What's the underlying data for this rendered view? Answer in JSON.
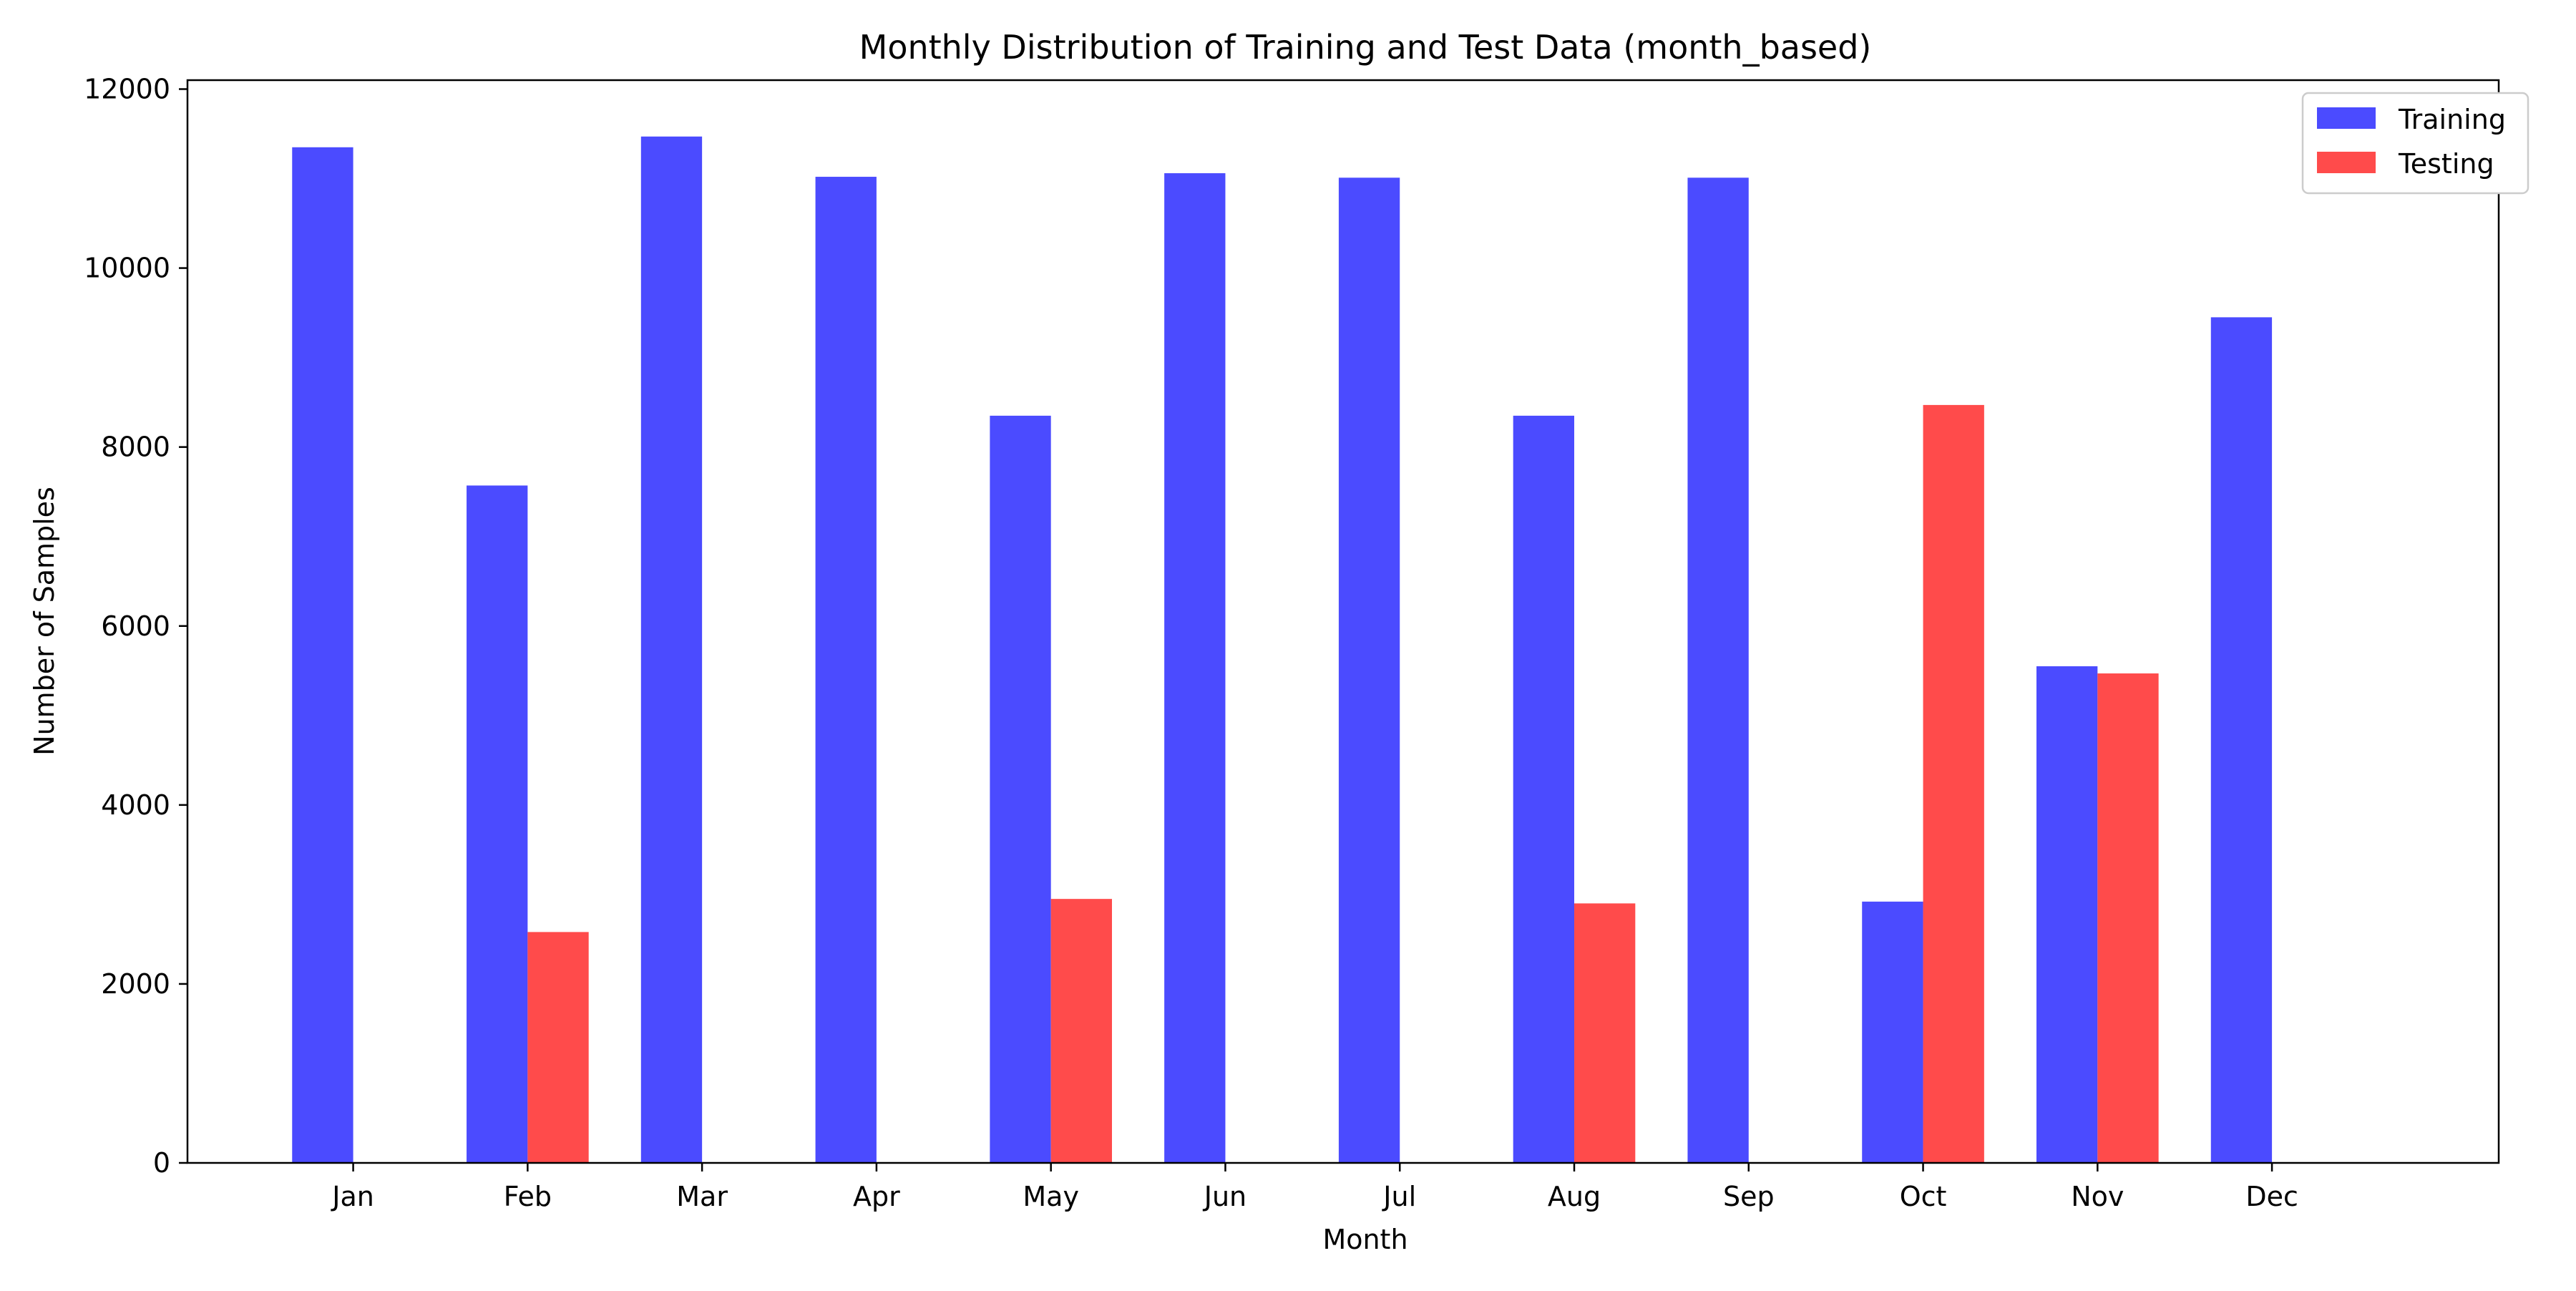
{
  "chart_data": {
    "type": "bar",
    "title": "Monthly Distribution of Training and Test Data (month_based)",
    "xlabel": "Month",
    "ylabel": "Number of Samples",
    "categories": [
      "Jan",
      "Feb",
      "Mar",
      "Apr",
      "May",
      "Jun",
      "Jul",
      "Aug",
      "Sep",
      "Oct",
      "Nov",
      "Dec"
    ],
    "series": [
      {
        "name": "Training",
        "color": "#4b4bff",
        "values": [
          11350,
          7570,
          11470,
          11020,
          8350,
          11060,
          11010,
          8350,
          11010,
          2920,
          5550,
          9450
        ]
      },
      {
        "name": "Testing",
        "color": "#ff4b4b",
        "values": [
          0,
          2580,
          0,
          0,
          2950,
          0,
          0,
          2900,
          0,
          8470,
          5470,
          0
        ]
      }
    ],
    "ylim": [
      0,
      12100
    ],
    "yticks": [
      0,
      2000,
      4000,
      6000,
      8000,
      10000,
      12000
    ],
    "grid": false,
    "legend_position": "top-right"
  }
}
